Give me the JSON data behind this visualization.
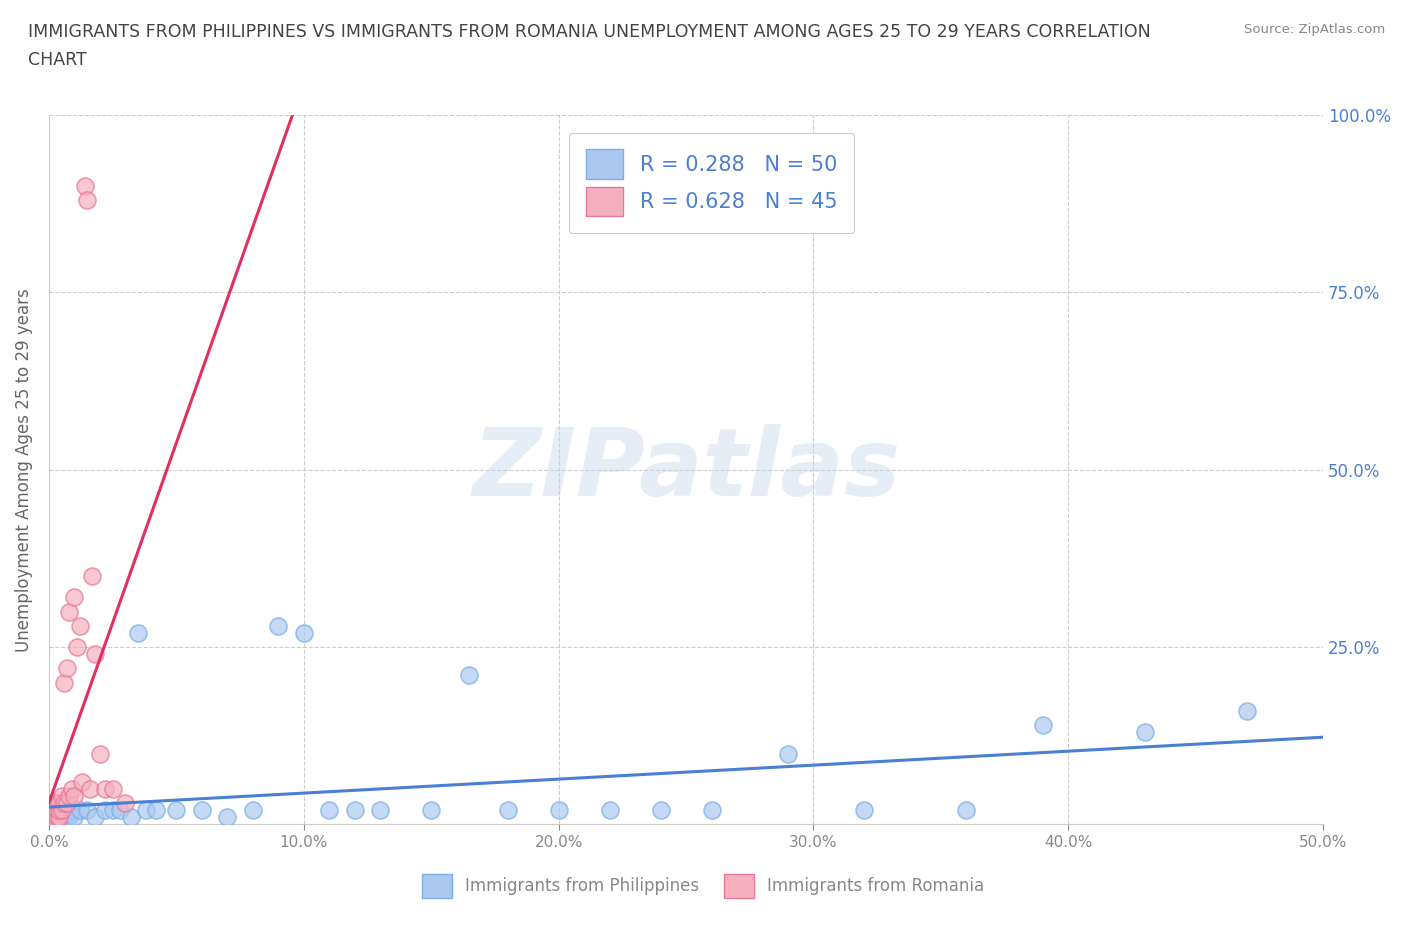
{
  "title_line1": "IMMIGRANTS FROM PHILIPPINES VS IMMIGRANTS FROM ROMANIA UNEMPLOYMENT AMONG AGES 25 TO 29 YEARS CORRELATION",
  "title_line2": "CHART",
  "source_text": "Source: ZipAtlas.com",
  "ylabel": "Unemployment Among Ages 25 to 29 years",
  "xlim": [
    0.0,
    0.5
  ],
  "ylim": [
    0.0,
    1.0
  ],
  "xticks": [
    0.0,
    0.1,
    0.2,
    0.3,
    0.4,
    0.5
  ],
  "xticklabels": [
    "0.0%",
    "10.0%",
    "20.0%",
    "30.0%",
    "40.0%",
    "50.0%"
  ],
  "yticks": [
    0.0,
    0.25,
    0.5,
    0.75,
    1.0
  ],
  "yticklabels_right": [
    "",
    "25.0%",
    "50.0%",
    "75.0%",
    "100.0%"
  ],
  "philippines_color": "#adc8f0",
  "philippines_edge_color": "#7aaee8",
  "romania_color": "#f5b0c0",
  "romania_edge_color": "#e87898",
  "philippines_line_color": "#4a7fd4",
  "romania_line_color": "#e03060",
  "romania_dash_color": "#e8a0b0",
  "R_philippines": 0.288,
  "N_philippines": 50,
  "R_romania": 0.628,
  "N_romania": 45,
  "watermark": "ZIPatlas",
  "watermark_color": "#c8d8e8",
  "title_color": "#444444",
  "axis_label_color": "#666666",
  "tick_color": "#888888",
  "right_tick_color": "#4a7fd4",
  "grid_color": "#cccccc",
  "philippines_x": [
    0.001,
    0.001,
    0.002,
    0.002,
    0.003,
    0.003,
    0.003,
    0.004,
    0.004,
    0.005,
    0.005,
    0.006,
    0.006,
    0.007,
    0.007,
    0.008,
    0.009,
    0.01,
    0.012,
    0.015,
    0.018,
    0.022,
    0.025,
    0.028,
    0.032,
    0.035,
    0.038,
    0.042,
    0.05,
    0.06,
    0.07,
    0.08,
    0.09,
    0.1,
    0.11,
    0.12,
    0.13,
    0.15,
    0.165,
    0.18,
    0.2,
    0.22,
    0.24,
    0.26,
    0.29,
    0.32,
    0.36,
    0.39,
    0.43,
    0.47
  ],
  "philippines_y": [
    0.0,
    0.01,
    0.0,
    0.02,
    0.0,
    0.01,
    0.02,
    0.0,
    0.01,
    0.0,
    0.02,
    0.01,
    0.0,
    0.01,
    0.02,
    0.01,
    0.02,
    0.01,
    0.02,
    0.02,
    0.01,
    0.02,
    0.02,
    0.02,
    0.01,
    0.27,
    0.02,
    0.02,
    0.02,
    0.02,
    0.01,
    0.02,
    0.28,
    0.27,
    0.02,
    0.02,
    0.02,
    0.02,
    0.21,
    0.02,
    0.02,
    0.02,
    0.02,
    0.02,
    0.1,
    0.02,
    0.02,
    0.14,
    0.13,
    0.16
  ],
  "romania_x": [
    0.0005,
    0.0005,
    0.0006,
    0.001,
    0.001,
    0.001,
    0.001,
    0.001,
    0.0015,
    0.0015,
    0.002,
    0.002,
    0.002,
    0.002,
    0.002,
    0.003,
    0.003,
    0.003,
    0.003,
    0.004,
    0.004,
    0.004,
    0.005,
    0.005,
    0.006,
    0.006,
    0.007,
    0.007,
    0.008,
    0.008,
    0.009,
    0.01,
    0.01,
    0.011,
    0.012,
    0.013,
    0.014,
    0.015,
    0.016,
    0.017,
    0.018,
    0.02,
    0.022,
    0.025,
    0.03
  ],
  "romania_y": [
    0.0,
    0.01,
    0.0,
    0.0,
    0.01,
    0.02,
    0.03,
    0.0,
    0.01,
    0.02,
    0.0,
    0.01,
    0.02,
    0.03,
    0.0,
    0.0,
    0.01,
    0.02,
    0.03,
    0.01,
    0.02,
    0.03,
    0.02,
    0.04,
    0.03,
    0.2,
    0.03,
    0.22,
    0.04,
    0.3,
    0.05,
    0.04,
    0.32,
    0.25,
    0.28,
    0.06,
    0.9,
    0.88,
    0.05,
    0.35,
    0.24,
    0.1,
    0.05,
    0.05,
    0.03
  ]
}
